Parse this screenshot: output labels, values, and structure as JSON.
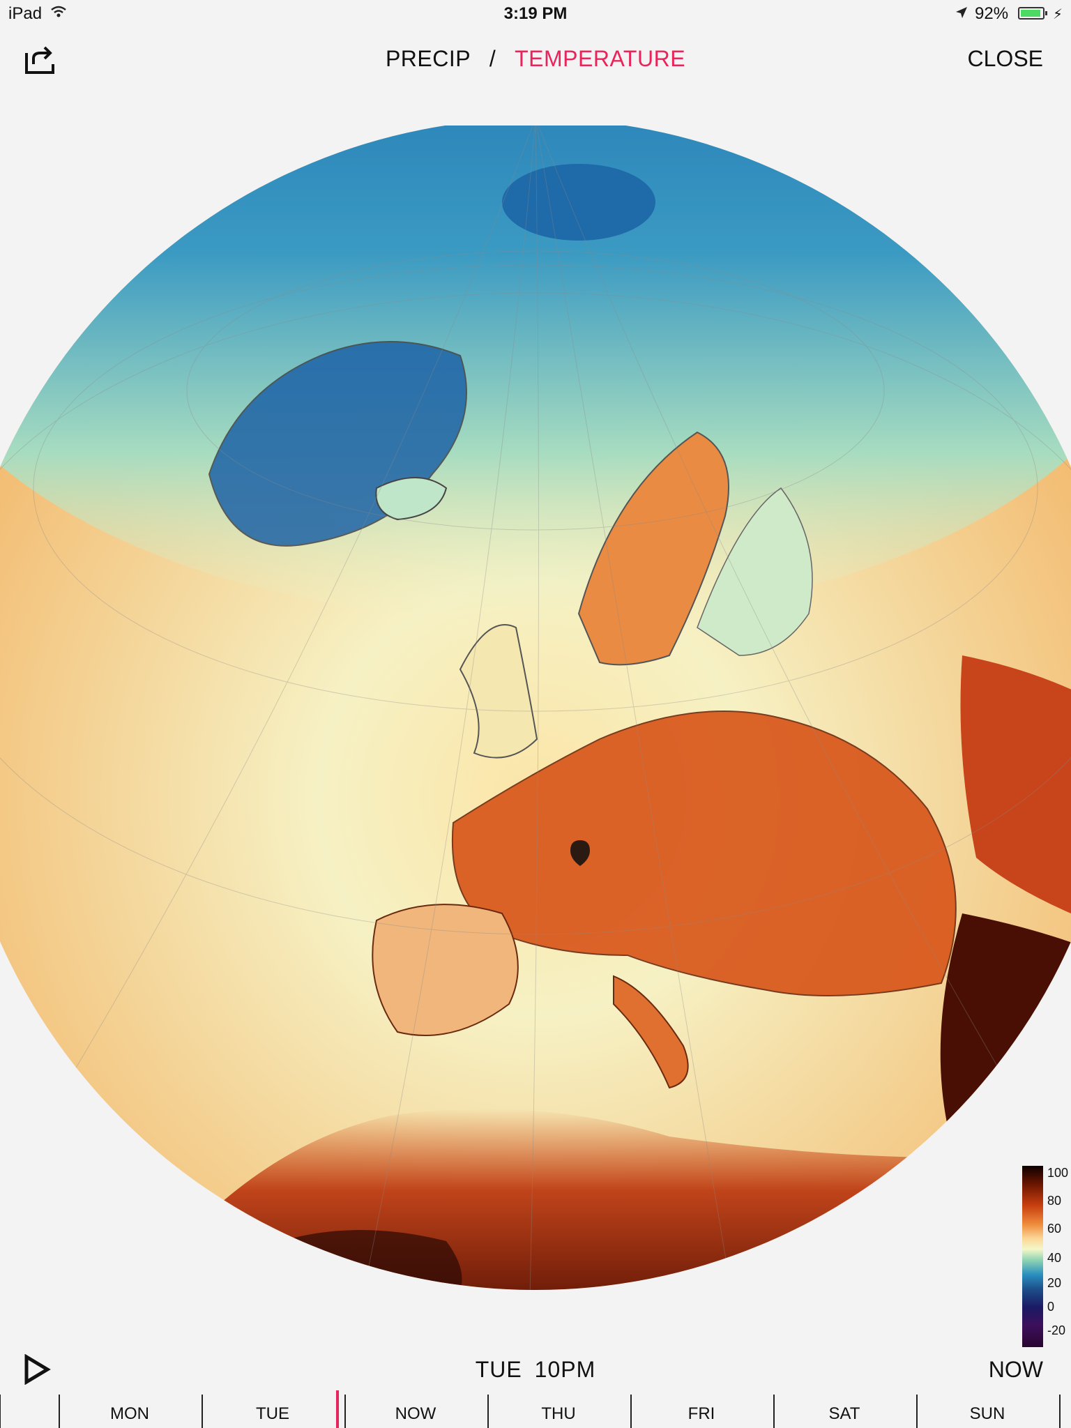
{
  "status_bar": {
    "device": "iPad",
    "time": "3:19 PM",
    "battery": "92%",
    "battery_level": 0.92
  },
  "header": {
    "layers": [
      "PRECIP",
      "TEMPERATURE"
    ],
    "active_layer": "TEMPERATURE",
    "separator": "/",
    "close_label": "CLOSE"
  },
  "map": {
    "projection": "orthographic globe",
    "region": "Europe, North Africa, Greenland"
  },
  "legend": {
    "ticks": [
      "100",
      "80",
      "60",
      "40",
      "20",
      "0",
      "-20"
    ]
  },
  "playback": {
    "current_time": "TUE  10PM",
    "now_label": "NOW"
  },
  "timeline": {
    "days": [
      "MON",
      "TUE",
      "NOW",
      "THU",
      "FRI",
      "SAT",
      "SUN"
    ]
  },
  "colors": {
    "accent": "#e8245a",
    "background": "#f3f3f3"
  }
}
